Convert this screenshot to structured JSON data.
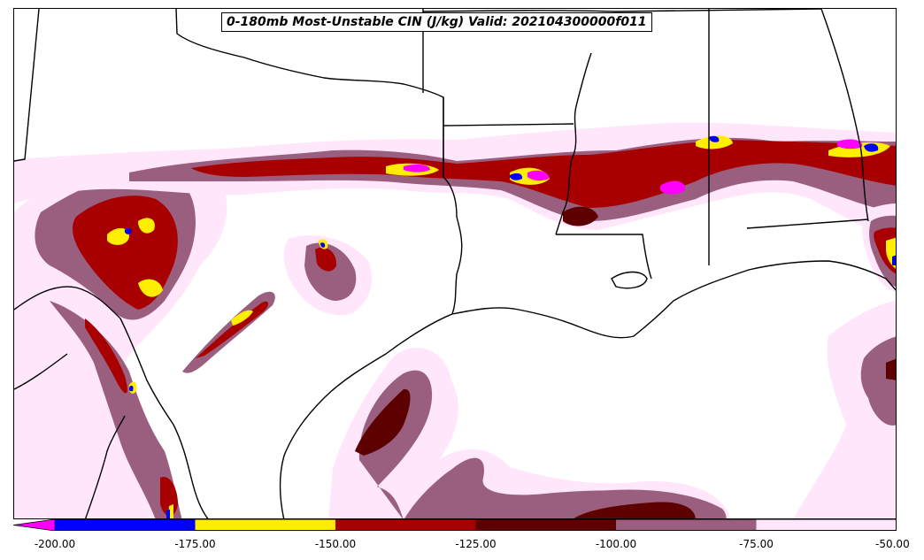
{
  "title": "0-180mb Most-Unstable CIN (J/kg) Valid: 202104300000f011",
  "colorbar": {
    "extend": "min",
    "under_color": "#ff00ff",
    "bins": [
      {
        "from": -200,
        "to": -175,
        "color": "#0000ff"
      },
      {
        "from": -175,
        "to": -150,
        "color": "#ffee00"
      },
      {
        "from": -150,
        "to": -125,
        "color": "#a80000"
      },
      {
        "from": -125,
        "to": -100,
        "color": "#5c0000"
      },
      {
        "from": -100,
        "to": -75,
        "color": "#9a5f7e"
      },
      {
        "from": -75,
        "to": -50,
        "color": "#ffe6fb"
      }
    ],
    "tick_labels": [
      "-200.00",
      "-175.00",
      "-150.00",
      "-125.00",
      "-100.00",
      "-75.00",
      "-50.00"
    ]
  },
  "map": {
    "region": "US Gulf Coast (Texas, Louisiana, Mississippi, Alabama) and northern Mexico",
    "projection_boundaries": [
      "state-borders",
      "coastline",
      "national-border"
    ]
  }
}
